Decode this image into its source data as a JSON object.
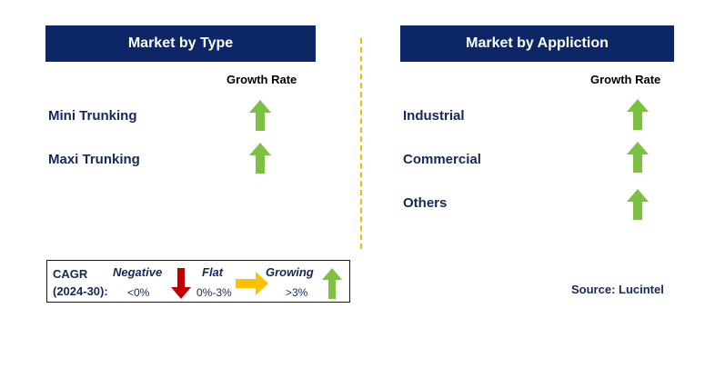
{
  "left_panel": {
    "title": "Market by Type",
    "column_label": "Growth Rate",
    "items": [
      {
        "label": "Mini Trunking",
        "trend": "growing"
      },
      {
        "label": "Maxi Trunking",
        "trend": "growing"
      }
    ]
  },
  "right_panel": {
    "title": "Market by Appliction",
    "column_label": "Growth Rate",
    "items": [
      {
        "label": "Industrial",
        "trend": "growing"
      },
      {
        "label": "Commercial",
        "trend": "growing"
      },
      {
        "label": "Others",
        "trend": "growing"
      }
    ]
  },
  "legend": {
    "cagr_line1": "CAGR",
    "cagr_line2": "(2024-30):",
    "negative": {
      "title": "Negative",
      "range": "<0%",
      "icon": "red-down-arrow-icon"
    },
    "flat": {
      "title": "Flat",
      "range": "0%-3%",
      "icon": "yellow-right-arrow-icon"
    },
    "growing": {
      "title": "Growing",
      "range": ">3%",
      "icon": "green-up-arrow-icon"
    }
  },
  "source": "Source: Lucintel",
  "colors": {
    "header_bg": "#0d2766",
    "label_text": "#14285c",
    "divider": "#f5b800",
    "up_arrow": "#7dc142",
    "down_arrow": "#c00000",
    "flat_arrow": "#ffc000"
  }
}
